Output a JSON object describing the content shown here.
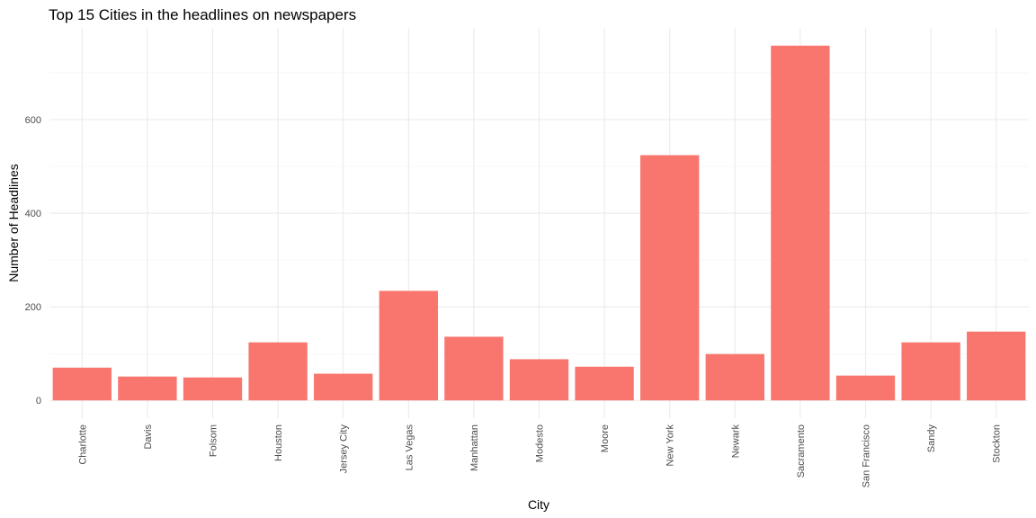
{
  "chart_data": {
    "type": "bar",
    "title": "Top 15 Cities in the headlines on newspapers",
    "xlabel": "City",
    "ylabel": "Number of Headlines",
    "categories": [
      "Charlotte",
      "Davis",
      "Folsom",
      "Houston",
      "Jersey City",
      "Las Vegas",
      "Manhattan",
      "Modesto",
      "Moore",
      "New York",
      "Newark",
      "Sacramento",
      "San Francisco",
      "Sandy",
      "Stockton"
    ],
    "values": [
      70,
      51,
      49,
      124,
      57,
      234,
      136,
      88,
      72,
      524,
      99,
      758,
      53,
      124,
      147
    ],
    "yticks": [
      0,
      200,
      400,
      600
    ],
    "ylim": [
      -38,
      796
    ],
    "grid": true,
    "legend": "none",
    "bar_color": "#F8766D"
  }
}
